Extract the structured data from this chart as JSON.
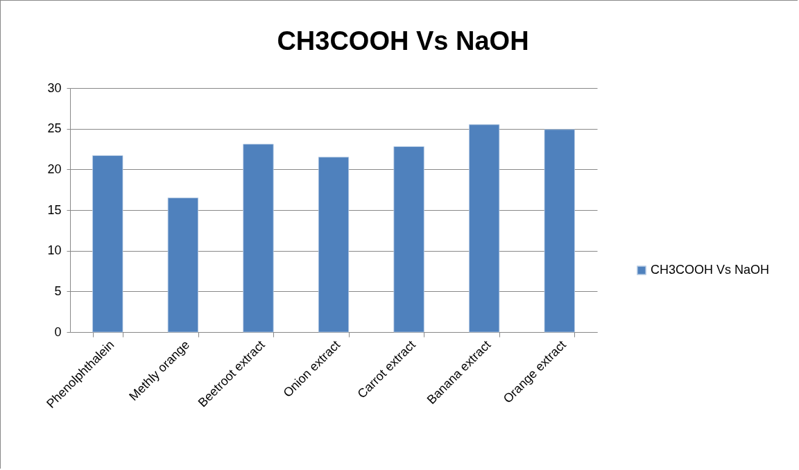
{
  "chart_data": {
    "type": "bar",
    "title": "CH3COOH Vs NaOH",
    "categories": [
      "Phenolphthalein",
      "Methly orange",
      "Beetroot extract",
      "Onion extract",
      "Carrot extract",
      "Banana extract",
      "Orange extract"
    ],
    "series": [
      {
        "name": "CH3COOH Vs NaOH",
        "color": "#4f81bd",
        "values": [
          21.7,
          16.5,
          23.1,
          21.5,
          22.8,
          25.5,
          24.9
        ]
      }
    ],
    "ylim": [
      0,
      30
    ],
    "yticks": [
      0,
      5,
      10,
      15,
      20,
      25,
      30
    ],
    "grid": "y",
    "legend": "right"
  }
}
